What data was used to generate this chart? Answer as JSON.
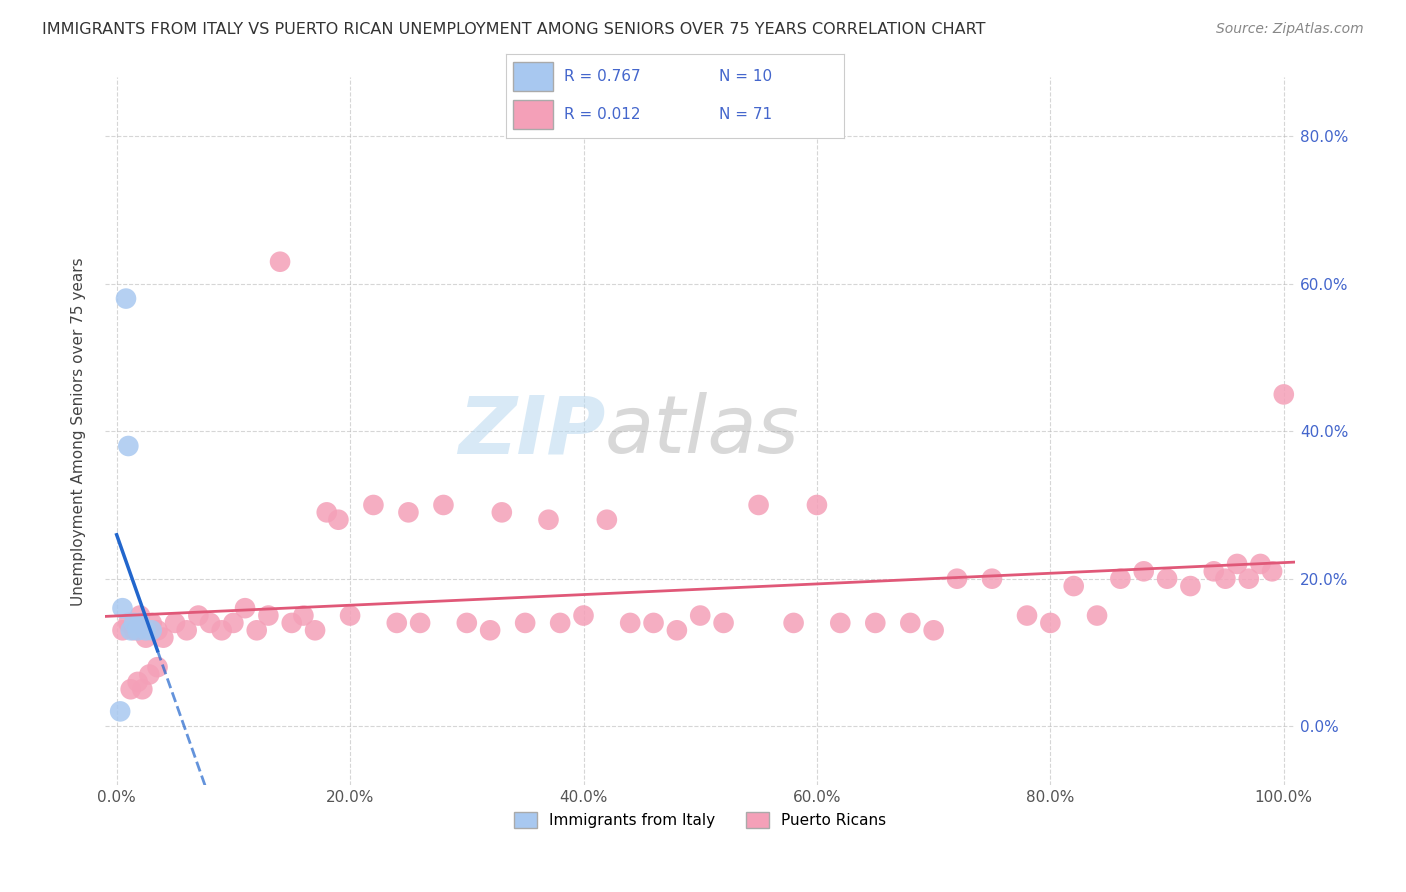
{
  "title": "IMMIGRANTS FROM ITALY VS PUERTO RICAN UNEMPLOYMENT AMONG SENIORS OVER 75 YEARS CORRELATION CHART",
  "source": "Source: ZipAtlas.com",
  "ylabel": "Unemployment Among Seniors over 75 years",
  "legend_r1": "R = 0.767",
  "legend_n1": "N = 10",
  "legend_r2": "R = 0.012",
  "legend_n2": "N = 71",
  "italy_color": "#a8c8f0",
  "pr_color": "#f4a0b8",
  "italy_line_color": "#2266cc",
  "pr_line_color": "#e05878",
  "axis_label_color": "#4466cc",
  "background": "#ffffff",
  "grid_color": "#bbbbbb",
  "watermark_zip": "ZIP",
  "watermark_atlas": "atlas",
  "italy_x": [
    0.3,
    0.5,
    0.8,
    1.0,
    1.2,
    1.5,
    1.8,
    2.0,
    2.5,
    3.0
  ],
  "italy_y": [
    2,
    16,
    58,
    38,
    13,
    14,
    13,
    14,
    13,
    13
  ],
  "pr_x": [
    0.5,
    1.0,
    1.5,
    2.0,
    2.5,
    3.0,
    3.5,
    4.0,
    5.0,
    6.0,
    7.0,
    8.0,
    9.0,
    10.0,
    11.0,
    12.0,
    13.0,
    14.0,
    15.0,
    16.0,
    17.0,
    18.0,
    19.0,
    20.0,
    22.0,
    24.0,
    25.0,
    26.0,
    28.0,
    30.0,
    32.0,
    33.0,
    35.0,
    37.0,
    38.0,
    40.0,
    42.0,
    44.0,
    46.0,
    48.0,
    50.0,
    52.0,
    55.0,
    58.0,
    60.0,
    62.0,
    65.0,
    68.0,
    70.0,
    72.0,
    75.0,
    78.0,
    80.0,
    82.0,
    84.0,
    86.0,
    88.0,
    90.0,
    92.0,
    94.0,
    95.0,
    96.0,
    97.0,
    98.0,
    99.0,
    100.0,
    1.2,
    1.8,
    2.2,
    2.8,
    3.5
  ],
  "pr_y": [
    13,
    14,
    13,
    15,
    12,
    14,
    13,
    12,
    14,
    13,
    15,
    14,
    13,
    14,
    16,
    13,
    15,
    63,
    14,
    15,
    13,
    29,
    28,
    15,
    30,
    14,
    29,
    14,
    30,
    14,
    13,
    29,
    14,
    28,
    14,
    15,
    28,
    14,
    14,
    13,
    15,
    14,
    30,
    14,
    30,
    14,
    14,
    14,
    13,
    20,
    20,
    15,
    14,
    19,
    15,
    20,
    21,
    20,
    19,
    21,
    20,
    22,
    20,
    22,
    21,
    45,
    5,
    6,
    5,
    7,
    8
  ],
  "xlim": [
    -1,
    101
  ],
  "ylim": [
    -8,
    88
  ],
  "xticks": [
    0,
    20,
    40,
    60,
    80,
    100
  ],
  "yticks": [
    0,
    20,
    40,
    60,
    80
  ]
}
